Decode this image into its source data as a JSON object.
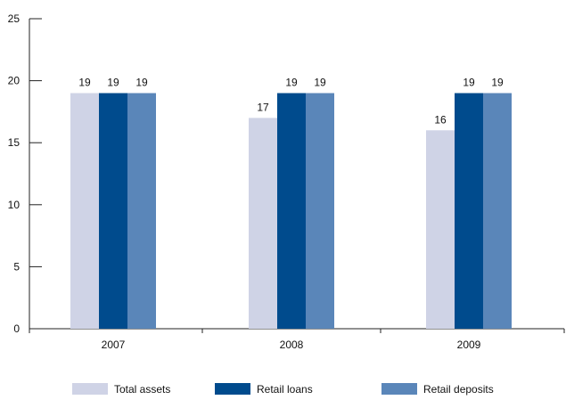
{
  "chart_data": {
    "type": "bar",
    "title": "",
    "xlabel": "",
    "ylabel": "",
    "categories": [
      "2007",
      "2008",
      "2009"
    ],
    "series": [
      {
        "name": "Total assets",
        "values": [
          19,
          17,
          16
        ],
        "color": "#cfd3e6"
      },
      {
        "name": "Retail loans",
        "values": [
          19,
          19,
          19
        ],
        "color": "#004b8d"
      },
      {
        "name": "Retail deposits",
        "values": [
          19,
          19,
          19
        ],
        "color": "#5a86b9"
      }
    ],
    "ylim": [
      0,
      25
    ],
    "yticks": [
      0,
      5,
      10,
      15,
      20,
      25
    ],
    "grid": false,
    "legend": "bottom",
    "axis_color": "#222222"
  }
}
